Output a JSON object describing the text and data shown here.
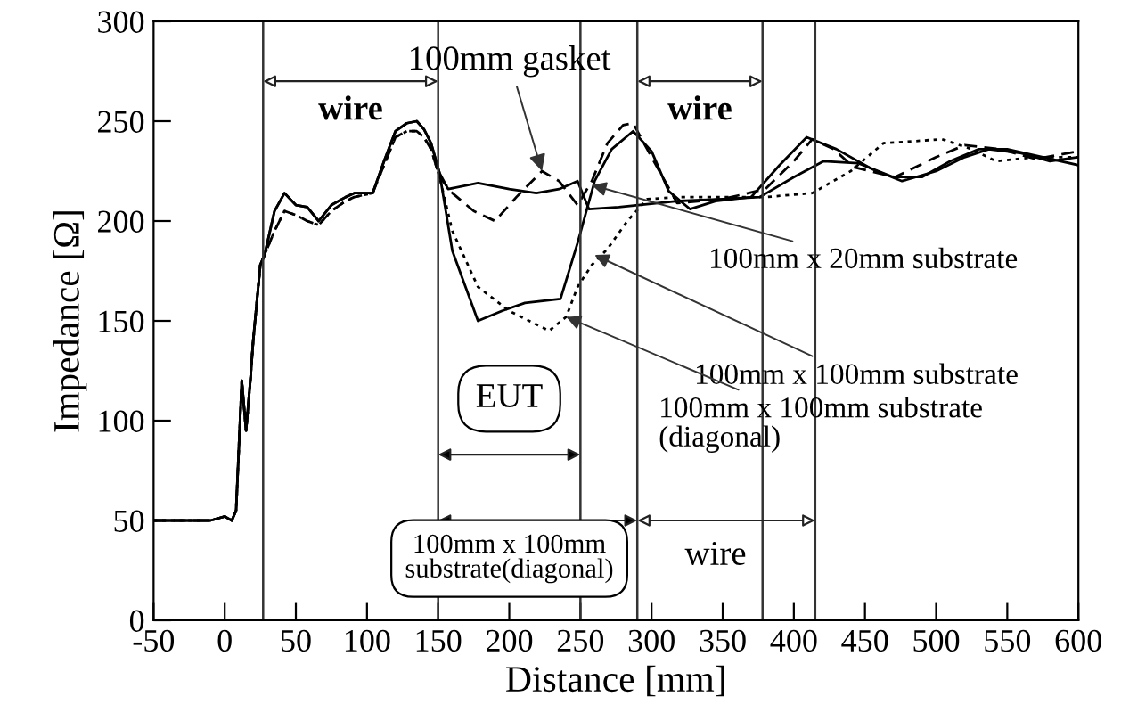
{
  "chart_data": {
    "type": "line",
    "xlabel": "Distance [mm]",
    "ylabel": "Impedance [Ω]",
    "xlim": [
      -50,
      600
    ],
    "ylim": [
      0,
      300
    ],
    "xticks": [
      -50,
      0,
      50,
      100,
      150,
      200,
      250,
      300,
      350,
      400,
      450,
      500,
      550,
      600
    ],
    "yticks": [
      0,
      50,
      100,
      150,
      200,
      250,
      300
    ],
    "grid": false,
    "legend": false,
    "series": [
      {
        "color": "#000000",
        "line_style": "solid",
        "x": [
          -50,
          -10,
          0,
          5,
          8,
          12,
          15,
          18,
          20,
          25,
          28,
          35,
          42,
          50,
          58,
          66,
          75,
          85,
          91,
          104,
          112,
          120,
          128,
          135,
          140,
          145,
          151,
          157,
          178,
          200,
          219,
          235,
          248,
          256,
          277,
          318,
          350,
          376,
          400,
          421,
          445,
          470,
          490,
          510,
          530,
          550,
          575,
          600
        ],
        "values": [
          50,
          50,
          52,
          50,
          55,
          120,
          95,
          120,
          140,
          178,
          183,
          205,
          214,
          208,
          207,
          200,
          208,
          212,
          214,
          214,
          230,
          245,
          249,
          250,
          246,
          239,
          224,
          216,
          219,
          216,
          214,
          216,
          220,
          206,
          207,
          210,
          211,
          212,
          222,
          230,
          229,
          222,
          222,
          230,
          236,
          236,
          232,
          228
        ]
      },
      {
        "color": "#000000",
        "line_style": "solid",
        "x": [
          -50,
          -10,
          0,
          5,
          8,
          12,
          15,
          18,
          20,
          25,
          28,
          35,
          42,
          50,
          58,
          66,
          75,
          85,
          91,
          104,
          112,
          120,
          128,
          135,
          140,
          145,
          151,
          160,
          178,
          195,
          211,
          236,
          248,
          260,
          272,
          287,
          300,
          312,
          327,
          345,
          370,
          390,
          409,
          430,
          455,
          476,
          500,
          520,
          537,
          560,
          580,
          600
        ],
        "values": [
          50,
          50,
          52,
          50,
          55,
          120,
          95,
          120,
          140,
          178,
          183,
          205,
          214,
          208,
          207,
          200,
          208,
          212,
          214,
          214,
          230,
          245,
          249,
          250,
          246,
          239,
          224,
          185,
          150,
          155,
          159,
          161,
          189,
          220,
          236,
          245,
          235,
          215,
          206,
          210,
          212,
          228,
          242,
          236,
          226,
          220,
          225,
          232,
          236,
          234,
          230,
          232
        ]
      },
      {
        "color": "#000000",
        "line_style": "dashed",
        "x": [
          -50,
          -10,
          0,
          5,
          8,
          12,
          15,
          18,
          20,
          25,
          28,
          35,
          42,
          50,
          58,
          66,
          75,
          85,
          91,
          104,
          112,
          120,
          128,
          135,
          140,
          145,
          151,
          160,
          175,
          190,
          205,
          223,
          235,
          248,
          258,
          269,
          280,
          287,
          300,
          318,
          350,
          380,
          400,
          413,
          428,
          442,
          471,
          500,
          520,
          545,
          570,
          600
        ],
        "values": [
          50,
          50,
          52,
          50,
          55,
          120,
          95,
          120,
          140,
          178,
          183,
          195,
          205,
          203,
          200,
          198,
          205,
          210,
          212,
          214,
          228,
          242,
          245,
          245,
          242,
          236,
          222,
          214,
          205,
          200,
          212,
          225,
          220,
          208,
          220,
          239,
          248,
          249,
          232,
          209,
          211,
          216,
          230,
          241,
          236,
          227,
          222,
          232,
          238,
          236,
          231,
          235
        ]
      },
      {
        "color": "#000000",
        "line_style": "dotted",
        "x": [
          -50,
          -10,
          0,
          5,
          8,
          12,
          15,
          18,
          20,
          25,
          28,
          35,
          42,
          50,
          58,
          66,
          75,
          85,
          91,
          104,
          112,
          120,
          128,
          135,
          140,
          145,
          151,
          160,
          178,
          200,
          228,
          240,
          248,
          258,
          269,
          283,
          297,
          320,
          350,
          380,
          413,
          440,
          463,
          485,
          504,
          525,
          542,
          570,
          600
        ],
        "values": [
          50,
          50,
          52,
          50,
          55,
          120,
          95,
          120,
          140,
          178,
          183,
          195,
          205,
          203,
          200,
          198,
          205,
          210,
          212,
          214,
          228,
          242,
          245,
          245,
          242,
          236,
          222,
          195,
          167,
          155,
          145,
          152,
          167,
          178,
          186,
          200,
          211,
          212,
          212,
          212,
          214,
          225,
          239,
          240,
          241,
          236,
          230,
          232,
          232
        ]
      }
    ],
    "ref_lines": [
      {
        "axis": "x",
        "value": 27
      },
      {
        "axis": "x",
        "value": 150
      },
      {
        "axis": "x",
        "value": 250
      },
      {
        "axis": "x",
        "value": 290
      },
      {
        "axis": "x",
        "value": 378
      },
      {
        "axis": "x",
        "value": 415
      }
    ],
    "annotations": [
      {
        "text": "100mm gasket",
        "x": 223,
        "y": 225
      },
      {
        "text": "100mm x 20mm substrate",
        "x": 258,
        "y": 218
      },
      {
        "text": "100mm x 100mm substrate",
        "x": 260,
        "y": 183
      },
      {
        "text": "100mm x 100mm substrate\n(diagonal)",
        "x": 240,
        "y": 152
      },
      "wire",
      "wire",
      "wire",
      "EUT",
      "100mm x 100mm\nsubstrate(diagonal)"
    ]
  }
}
